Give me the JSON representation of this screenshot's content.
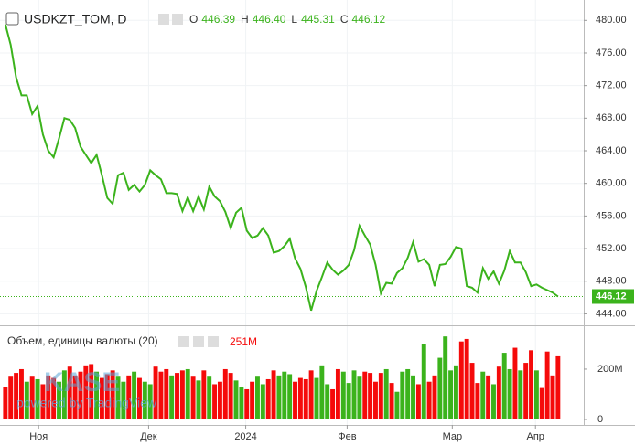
{
  "chart_data": {
    "type": "line",
    "symbol": "USDKZT_TOM, D",
    "ohlc": [
      {
        "key": "O",
        "value": "446.39"
      },
      {
        "key": "H",
        "value": "446.40"
      },
      {
        "key": "L",
        "value": "445.31"
      },
      {
        "key": "C",
        "value": "446.12"
      }
    ],
    "color": "#3bb31c",
    "x": [
      0,
      1,
      2,
      3,
      4,
      5,
      6,
      7,
      8,
      9,
      10,
      11,
      12,
      13,
      14,
      15,
      16,
      17,
      18,
      19,
      20,
      21,
      22,
      23,
      24,
      25,
      26,
      27,
      28,
      29,
      30,
      31,
      32,
      33,
      34,
      35,
      36,
      37,
      38,
      39,
      40,
      41,
      42,
      43,
      44,
      45,
      46,
      47,
      48,
      49,
      50,
      51,
      52,
      53,
      54,
      55,
      56,
      57,
      58,
      59,
      60,
      61,
      62,
      63,
      64,
      65,
      66,
      67,
      68,
      69,
      70,
      71,
      72,
      73,
      74,
      75,
      76,
      77,
      78,
      79,
      80,
      81,
      82,
      83,
      84,
      85,
      86,
      87,
      88,
      89,
      90,
      91,
      92,
      93,
      94,
      95,
      96,
      97,
      98,
      99,
      100,
      101,
      102,
      103
    ],
    "values": [
      479.5,
      477,
      473,
      470.8,
      470.8,
      468.5,
      469.5,
      466,
      464,
      463.2,
      465.5,
      468,
      467.8,
      466.8,
      464.5,
      463.5,
      462.5,
      463.5,
      461,
      458.2,
      457.5,
      461,
      461.3,
      459.2,
      459.8,
      459,
      459.8,
      461.6,
      461,
      460.5,
      458.8,
      458.8,
      458.7,
      456.6,
      458.3,
      456.6,
      458.4,
      456.8,
      459.6,
      458.4,
      457.8,
      456.5,
      454.5,
      456.4,
      457,
      454.2,
      453.3,
      453.6,
      454.5,
      453.6,
      451.5,
      451.7,
      452.3,
      453.2,
      450.8,
      449.5,
      447.3,
      444.4,
      446.8,
      448.5,
      450.3,
      449.4,
      448.8,
      449.3,
      450,
      451.8,
      454.8,
      453.6,
      452.5,
      450,
      446.5,
      447.8,
      447.7,
      449,
      449.6,
      450.9,
      452.8,
      450.4,
      450.7,
      450,
      447.4,
      450,
      450.1,
      451,
      452.2,
      452,
      447.4,
      447.2,
      446.6,
      449.6,
      448.3,
      449.2,
      447.7,
      449.3,
      451.7,
      450.3,
      450.3,
      449.1,
      447.4,
      447.6,
      447.2,
      446.9,
      446.6,
      446.12
    ],
    "xlim": [
      -1,
      107.8
    ],
    "xticks": [
      {
        "value": 6.2,
        "label": "Ноя"
      },
      {
        "value": 26.7,
        "label": "Дек"
      },
      {
        "value": 44.8,
        "label": "2024"
      },
      {
        "value": 63.7,
        "label": "Фев"
      },
      {
        "value": 83.3,
        "label": "Мар"
      },
      {
        "value": 98.8,
        "label": "Апр"
      }
    ],
    "ylim": [
      442.7,
      482.5
    ],
    "yticks": [
      {
        "value": 444,
        "label": "444.00"
      },
      {
        "value": 448,
        "label": "448.00"
      },
      {
        "value": 452,
        "label": "452.00"
      },
      {
        "value": 456,
        "label": "456.00"
      },
      {
        "value": 460,
        "label": "460.00"
      },
      {
        "value": 464,
        "label": "464.00"
      },
      {
        "value": 468,
        "label": "468.00"
      },
      {
        "value": 472,
        "label": "472.00"
      },
      {
        "value": 476,
        "label": "476.00"
      },
      {
        "value": 480,
        "label": "480.00"
      }
    ],
    "volume": {
      "title": "Объем, единицы валюты (20)",
      "last_label": "251M",
      "up_color": "#3bb31c",
      "down_color": "#f50a0a",
      "values": [
        130000000.0,
        170000000.0,
        185000000.0,
        200000000.0,
        150000000.0,
        170000000.0,
        160000000.0,
        140000000.0,
        175000000.0,
        165000000.0,
        150000000.0,
        195000000.0,
        210000000.0,
        175000000.0,
        190000000.0,
        215000000.0,
        220000000.0,
        190000000.0,
        165000000.0,
        180000000.0,
        195000000.0,
        170000000.0,
        150000000.0,
        175000000.0,
        190000000.0,
        165000000.0,
        150000000.0,
        140000000.0,
        210000000.0,
        190000000.0,
        200000000.0,
        175000000.0,
        185000000.0,
        195000000.0,
        200000000.0,
        170000000.0,
        155000000.0,
        195000000.0,
        170000000.0,
        140000000.0,
        150000000.0,
        200000000.0,
        185000000.0,
        155000000.0,
        130000000.0,
        120000000.0,
        150000000.0,
        170000000.0,
        140000000.0,
        160000000.0,
        195000000.0,
        175000000.0,
        190000000.0,
        180000000.0,
        150000000.0,
        165000000.0,
        160000000.0,
        195000000.0,
        165000000.0,
        215000000.0,
        140000000.0,
        120000000.0,
        200000000.0,
        190000000.0,
        145000000.0,
        195000000.0,
        170000000.0,
        190000000.0,
        185000000.0,
        150000000.0,
        185000000.0,
        200000000.0,
        145000000.0,
        110000000.0,
        190000000.0,
        200000000.0,
        175000000.0,
        140000000.0,
        300000000.0,
        150000000.0,
        175000000.0,
        245000000.0,
        330000000.0,
        195000000.0,
        215000000.0,
        310000000.0,
        320000000.0,
        225000000.0,
        145000000.0,
        190000000.0,
        175000000.0,
        140000000.0,
        210000000.0,
        265000000.0,
        200000000.0,
        285000000.0,
        195000000.0,
        225000000.0,
        275000000.0,
        195000000.0,
        125000000.0,
        270000000.0,
        175000000.0,
        251000000.0
      ],
      "ylim": [
        0,
        367000000.0
      ],
      "yticks": [
        0,
        {
          "value": 200000000.0,
          "label": "200M"
        }
      ]
    },
    "watermark": {
      "name": "KASE",
      "powered": "powered by TradingView"
    }
  }
}
